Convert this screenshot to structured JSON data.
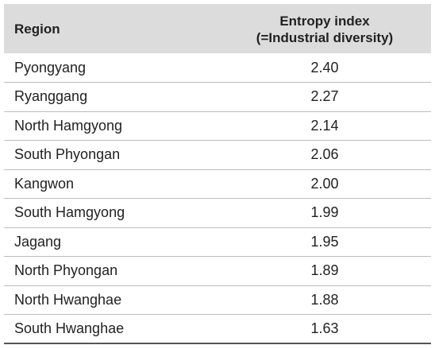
{
  "table": {
    "headers": {
      "region": "Region",
      "value_line1": "Entropy index",
      "value_line2": "(=Industrial diversity)"
    },
    "rows": [
      {
        "region": "Pyongyang",
        "value": "2.40"
      },
      {
        "region": "Ryanggang",
        "value": "2.27"
      },
      {
        "region": "North Hamgyong",
        "value": "2.14"
      },
      {
        "region": "South Phyongan",
        "value": "2.06"
      },
      {
        "region": "Kangwon",
        "value": "2.00"
      },
      {
        "region": "South Hamgyong",
        "value": "1.99"
      },
      {
        "region": "Jagang",
        "value": "1.95"
      },
      {
        "region": "North Phyongan",
        "value": "1.89"
      },
      {
        "region": "North Hwanghae",
        "value": "1.88"
      },
      {
        "region": "South Hwanghae",
        "value": "1.63"
      }
    ]
  },
  "colors": {
    "header_bg": "#dcdcdc",
    "row_divider": "#bdbdbd",
    "text": "#222222"
  }
}
